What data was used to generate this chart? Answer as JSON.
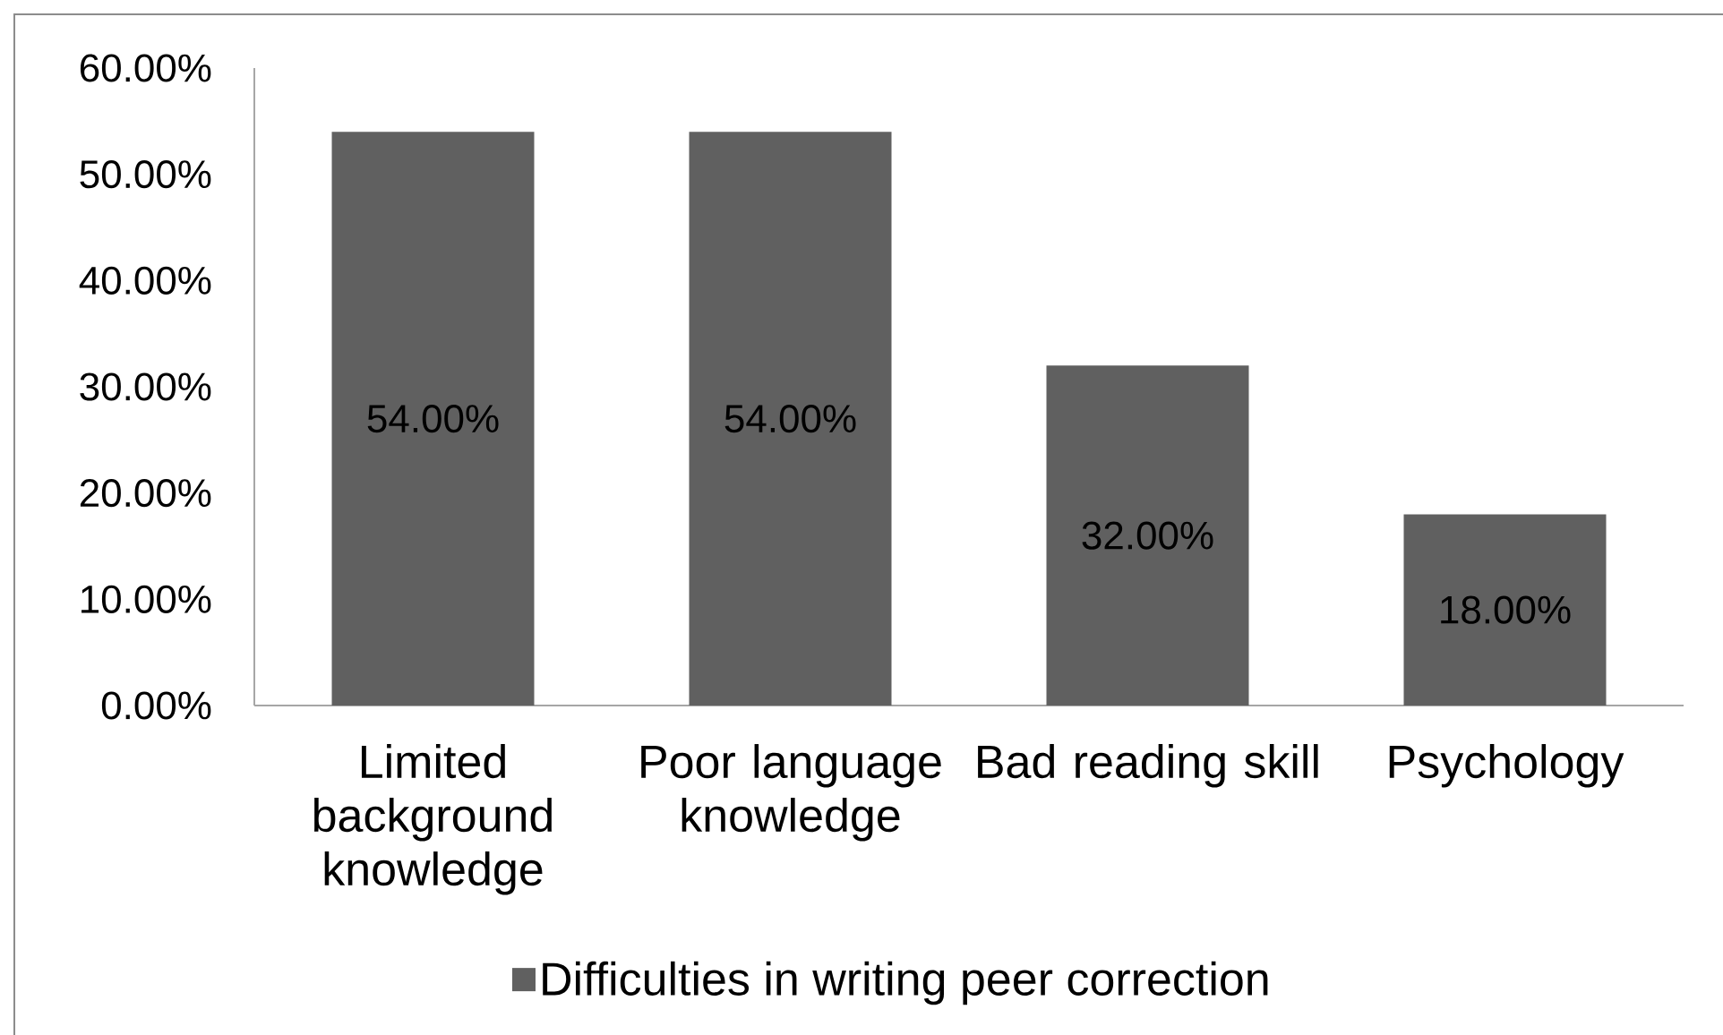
{
  "chart_data": {
    "type": "bar",
    "categories": [
      "Limited background knowledge",
      "Poor language knowledge",
      "Bad reading skill",
      "Psychology"
    ],
    "series": [
      {
        "name": "Difficulties in writing peer correction",
        "color": "#606060",
        "values": [
          54,
          54,
          32,
          18
        ],
        "value_labels": [
          "54.00%",
          "54.00%",
          "32.00%",
          "18.00%"
        ]
      }
    ],
    "ylim": [
      0,
      60
    ],
    "yticks": [
      {
        "value": 0,
        "label": "0.00%"
      },
      {
        "value": 10,
        "label": "10.00%"
      },
      {
        "value": 20,
        "label": "20.00%"
      },
      {
        "value": 30,
        "label": "30.00%"
      },
      {
        "value": 40,
        "label": "40.00%"
      },
      {
        "value": 50,
        "label": "50.00%"
      },
      {
        "value": 60,
        "label": "60.00%"
      }
    ],
    "legend": "bottom"
  }
}
